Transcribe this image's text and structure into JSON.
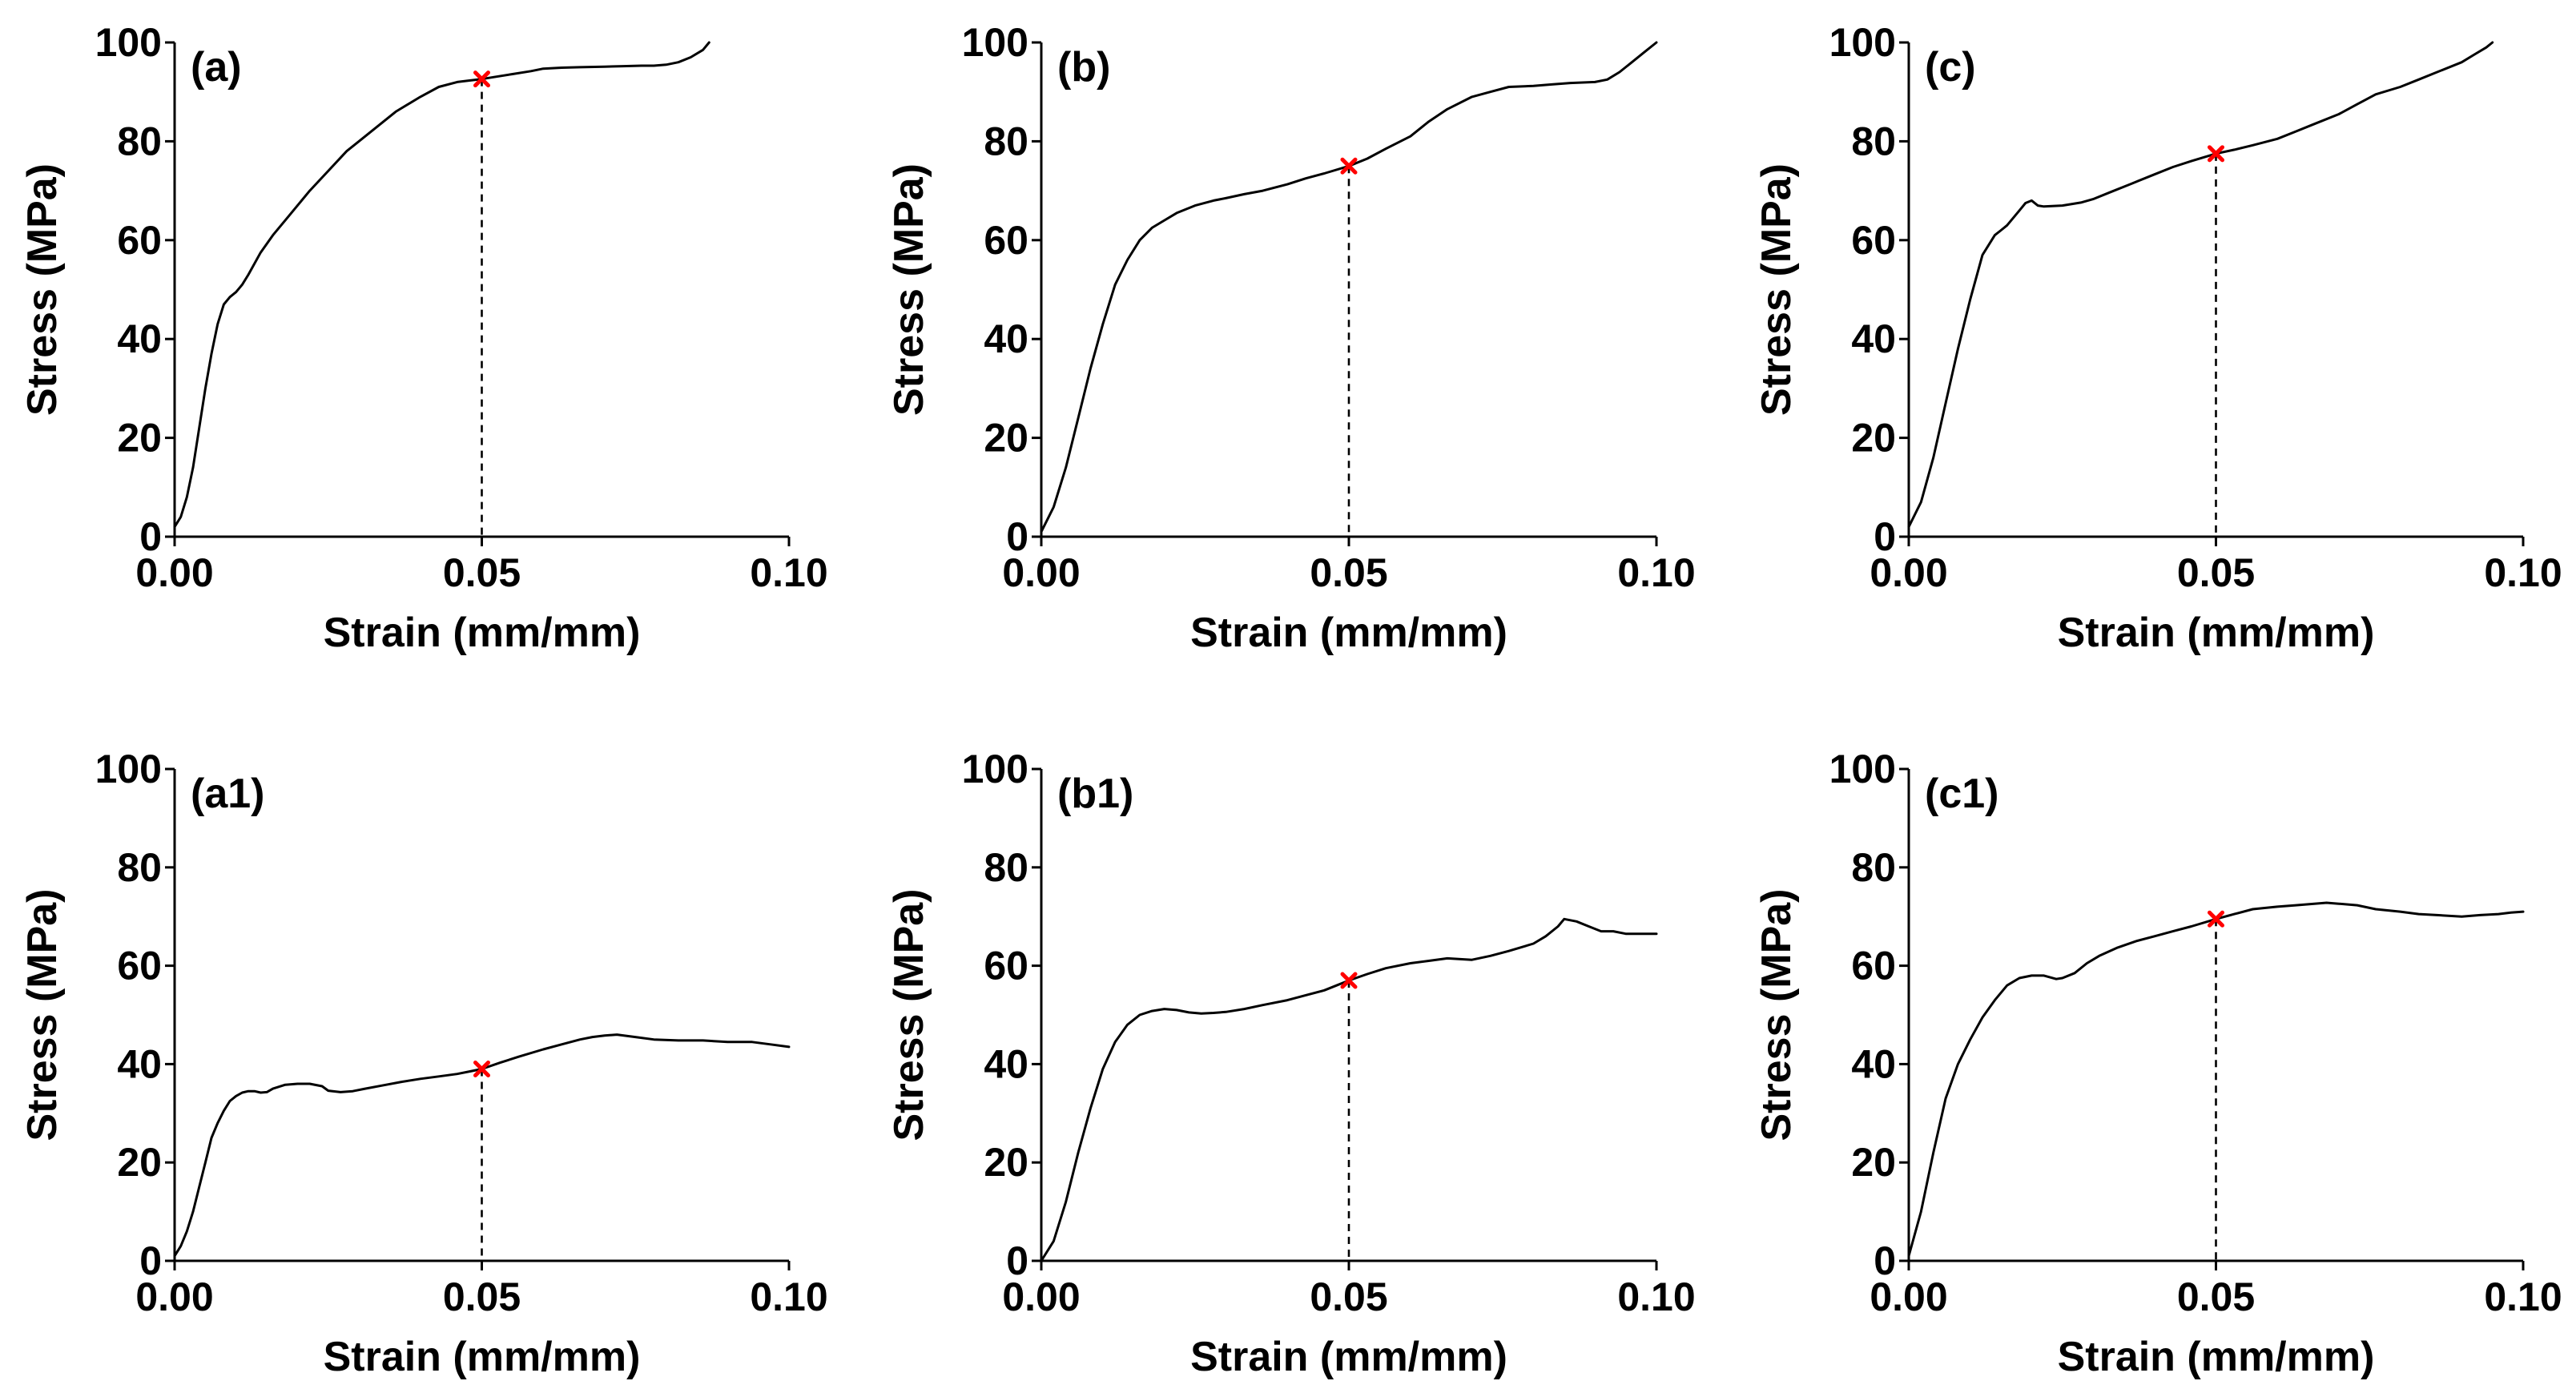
{
  "colors": {
    "curve": "#000000",
    "marker": "#ff0000",
    "axis": "#000000"
  },
  "chart_data": [
    {
      "type": "line",
      "label": "(a)",
      "xlabel": "Strain (mm/mm)",
      "ylabel": "Stress (MPa)",
      "xlim": [
        0,
        0.1
      ],
      "ylim": [
        0,
        100
      ],
      "xticks": [
        "0.00",
        "0.05",
        "0.10"
      ],
      "yticks": [
        "0",
        "20",
        "40",
        "60",
        "80",
        "100"
      ],
      "series": [
        {
          "x": [
            0,
            0.001,
            0.002,
            0.003,
            0.004,
            0.005,
            0.006,
            0.007,
            0.008,
            0.009,
            0.01,
            0.011,
            0.012,
            0.014,
            0.016,
            0.018,
            0.02,
            0.022,
            0.025,
            0.028,
            0.03,
            0.033,
            0.036,
            0.04,
            0.043,
            0.046,
            0.048,
            0.05,
            0.052,
            0.055,
            0.058,
            0.06,
            0.063,
            0.066,
            0.07,
            0.073,
            0.076,
            0.078,
            0.08,
            0.082,
            0.084,
            0.086,
            0.087
          ],
          "y": [
            2,
            4,
            8,
            14,
            22,
            30,
            37,
            43,
            47,
            48.5,
            49.5,
            51,
            53,
            57.5,
            61,
            64,
            67,
            70,
            74,
            78,
            80,
            83,
            86,
            89,
            91,
            92,
            92.3,
            92.6,
            93,
            93.6,
            94.2,
            94.7,
            94.9,
            95,
            95.1,
            95.2,
            95.3,
            95.3,
            95.5,
            96,
            97,
            98.5,
            100
          ]
        }
      ],
      "marker": {
        "x": 0.05,
        "y": 92.6
      }
    },
    {
      "type": "line",
      "label": "(b)",
      "xlabel": "Strain (mm/mm)",
      "ylabel": "Stress (MPa)",
      "xlim": [
        0,
        0.1
      ],
      "ylim": [
        0,
        100
      ],
      "xticks": [
        "0.00",
        "0.05",
        "0.10"
      ],
      "yticks": [
        "0",
        "20",
        "40",
        "60",
        "80",
        "100"
      ],
      "series": [
        {
          "x": [
            0,
            0.002,
            0.004,
            0.006,
            0.008,
            0.01,
            0.012,
            0.014,
            0.016,
            0.018,
            0.02,
            0.022,
            0.025,
            0.028,
            0.03,
            0.033,
            0.036,
            0.04,
            0.043,
            0.046,
            0.05,
            0.053,
            0.056,
            0.06,
            0.063,
            0.066,
            0.07,
            0.073,
            0.076,
            0.08,
            0.083,
            0.086,
            0.09,
            0.092,
            0.094,
            0.096,
            0.098,
            0.1
          ],
          "y": [
            1,
            6,
            14,
            24,
            34,
            43,
            51,
            56,
            60,
            62.5,
            64,
            65.5,
            67,
            68,
            68.5,
            69.3,
            70,
            71.3,
            72.5,
            73.5,
            75,
            76.5,
            78.5,
            81,
            84,
            86.5,
            89,
            90,
            91,
            91.2,
            91.5,
            91.8,
            92,
            92.5,
            94,
            96,
            98,
            100
          ]
        }
      ],
      "marker": {
        "x": 0.05,
        "y": 75
      }
    },
    {
      "type": "line",
      "label": "(c)",
      "xlabel": "Strain (mm/mm)",
      "ylabel": "Stress (MPa)",
      "xlim": [
        0,
        0.1
      ],
      "ylim": [
        0,
        100
      ],
      "xticks": [
        "0.00",
        "0.05",
        "0.10"
      ],
      "yticks": [
        "0",
        "20",
        "40",
        "60",
        "80",
        "100"
      ],
      "series": [
        {
          "x": [
            0,
            0.002,
            0.004,
            0.006,
            0.008,
            0.01,
            0.012,
            0.014,
            0.015,
            0.016,
            0.018,
            0.019,
            0.02,
            0.021,
            0.022,
            0.025,
            0.028,
            0.03,
            0.033,
            0.036,
            0.04,
            0.043,
            0.046,
            0.05,
            0.053,
            0.056,
            0.06,
            0.063,
            0.066,
            0.07,
            0.073,
            0.076,
            0.08,
            0.083,
            0.086,
            0.09,
            0.092,
            0.094,
            0.095
          ],
          "y": [
            2,
            7,
            16,
            27,
            38,
            48,
            57,
            61,
            62,
            63,
            66,
            67.5,
            68,
            67,
            66.8,
            67,
            67.6,
            68.3,
            69.8,
            71.3,
            73.3,
            74.8,
            76,
            77.5,
            78.3,
            79.2,
            80.5,
            82,
            83.5,
            85.5,
            87.5,
            89.5,
            91,
            92.5,
            94,
            96,
            97.5,
            99,
            100
          ]
        }
      ],
      "marker": {
        "x": 0.05,
        "y": 77.5
      }
    },
    {
      "type": "line",
      "label": "(a1)",
      "xlabel": "Strain (mm/mm)",
      "ylabel": "Stress (MPa)",
      "xlim": [
        0,
        0.1
      ],
      "ylim": [
        0,
        100
      ],
      "xticks": [
        "0.00",
        "0.05",
        "0.10"
      ],
      "yticks": [
        "0",
        "20",
        "40",
        "60",
        "80",
        "100"
      ],
      "series": [
        {
          "x": [
            0,
            0.001,
            0.002,
            0.003,
            0.004,
            0.005,
            0.006,
            0.007,
            0.008,
            0.009,
            0.01,
            0.011,
            0.012,
            0.013,
            0.014,
            0.015,
            0.016,
            0.018,
            0.02,
            0.022,
            0.024,
            0.025,
            0.027,
            0.029,
            0.031,
            0.034,
            0.037,
            0.04,
            0.043,
            0.046,
            0.048,
            0.05,
            0.053,
            0.056,
            0.06,
            0.063,
            0.066,
            0.068,
            0.07,
            0.072,
            0.075,
            0.078,
            0.082,
            0.086,
            0.09,
            0.094,
            0.097,
            0.1
          ],
          "y": [
            1,
            3,
            6,
            10,
            15,
            20,
            25,
            28,
            30.5,
            32.5,
            33.5,
            34.2,
            34.5,
            34.5,
            34.2,
            34.3,
            35,
            35.8,
            36,
            36,
            35.5,
            34.6,
            34.3,
            34.5,
            35,
            35.7,
            36.4,
            37,
            37.5,
            38,
            38.5,
            39,
            40.3,
            41.5,
            43,
            44,
            45,
            45.5,
            45.8,
            46,
            45.5,
            45,
            44.8,
            44.8,
            44.5,
            44.5,
            44,
            43.5
          ]
        }
      ],
      "marker": {
        "x": 0.05,
        "y": 39
      }
    },
    {
      "type": "line",
      "label": "(b1)",
      "xlabel": "Strain (mm/mm)",
      "ylabel": "Stress (MPa)",
      "xlim": [
        0,
        0.1
      ],
      "ylim": [
        0,
        100
      ],
      "xticks": [
        "0.00",
        "0.05",
        "0.10"
      ],
      "yticks": [
        "0",
        "20",
        "40",
        "60",
        "80",
        "100"
      ],
      "series": [
        {
          "x": [
            0,
            0.002,
            0.004,
            0.006,
            0.008,
            0.01,
            0.012,
            0.014,
            0.016,
            0.018,
            0.02,
            0.022,
            0.024,
            0.026,
            0.028,
            0.03,
            0.033,
            0.036,
            0.04,
            0.043,
            0.046,
            0.048,
            0.05,
            0.053,
            0.056,
            0.06,
            0.063,
            0.066,
            0.07,
            0.073,
            0.076,
            0.08,
            0.082,
            0.084,
            0.085,
            0.087,
            0.089,
            0.091,
            0.093,
            0.095,
            0.098,
            0.1
          ],
          "y": [
            0,
            4,
            12,
            22,
            31,
            39,
            44.5,
            48,
            50,
            50.8,
            51.2,
            51,
            50.5,
            50.3,
            50.4,
            50.6,
            51.2,
            52,
            53,
            54,
            55,
            56,
            57,
            58.3,
            59.5,
            60.5,
            61,
            61.5,
            61.2,
            62,
            63,
            64.5,
            66,
            68,
            69.5,
            69,
            68,
            67,
            67,
            66.5,
            66.5,
            66.5
          ]
        }
      ],
      "marker": {
        "x": 0.05,
        "y": 57
      }
    },
    {
      "type": "line",
      "label": "(c1)",
      "xlabel": "Strain (mm/mm)",
      "ylabel": "Stress (MPa)",
      "xlim": [
        0,
        0.1
      ],
      "ylim": [
        0,
        100
      ],
      "xticks": [
        "0.00",
        "0.05",
        "0.10"
      ],
      "yticks": [
        "0",
        "20",
        "40",
        "60",
        "80",
        "100"
      ],
      "series": [
        {
          "x": [
            0,
            0.002,
            0.004,
            0.006,
            0.008,
            0.01,
            0.012,
            0.014,
            0.016,
            0.018,
            0.02,
            0.022,
            0.024,
            0.025,
            0.027,
            0.029,
            0.031,
            0.034,
            0.037,
            0.04,
            0.043,
            0.046,
            0.05,
            0.053,
            0.056,
            0.06,
            0.063,
            0.066,
            0.068,
            0.07,
            0.073,
            0.076,
            0.08,
            0.083,
            0.086,
            0.09,
            0.093,
            0.096,
            0.098,
            0.1
          ],
          "y": [
            1,
            10,
            22,
            33,
            40,
            45,
            49.5,
            53,
            56,
            57.5,
            58,
            58,
            57.3,
            57.5,
            58.5,
            60.5,
            62,
            63.7,
            65,
            66,
            67,
            68,
            69.5,
            70.5,
            71.5,
            72,
            72.3,
            72.6,
            72.8,
            72.6,
            72.3,
            71.5,
            71,
            70.5,
            70.3,
            70,
            70.3,
            70.5,
            70.8,
            71
          ]
        }
      ],
      "marker": {
        "x": 0.05,
        "y": 69.5
      }
    }
  ]
}
